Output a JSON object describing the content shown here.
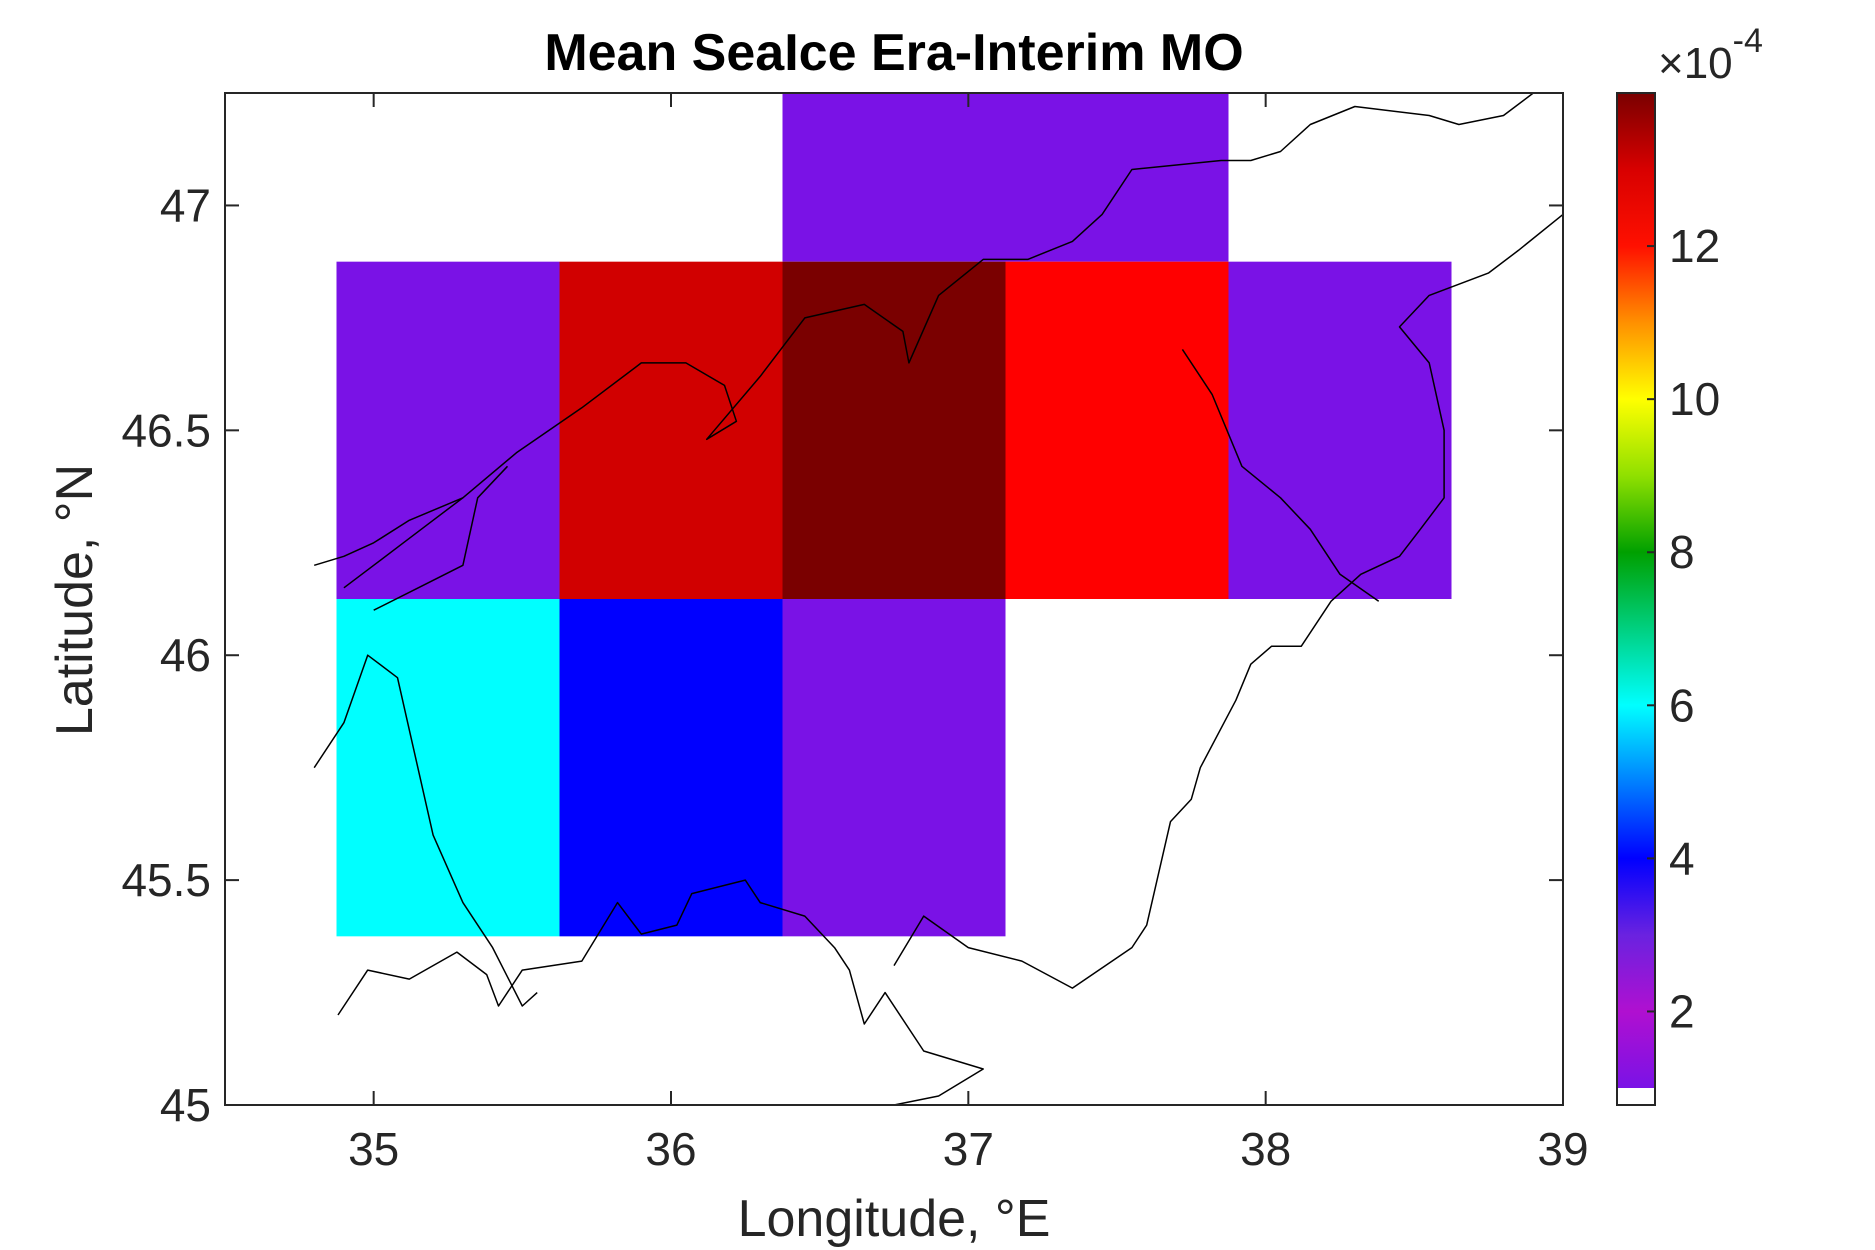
{
  "chart_data": {
    "type": "heatmap",
    "title": "Mean SeaIce Era-Interim MO",
    "xlabel": "Longitude, °E",
    "ylabel": "Latitude, °N",
    "xlim": [
      34.5,
      39
    ],
    "ylim": [
      45,
      47.25
    ],
    "xticks": [
      35,
      36,
      37,
      38,
      39
    ],
    "yticks": [
      45,
      45.5,
      46,
      46.5,
      47
    ],
    "xtick_labels": [
      "35",
      "36",
      "37",
      "38",
      "39"
    ],
    "ytick_labels": [
      "45",
      "45.5",
      "46",
      "46.5",
      "47"
    ],
    "grid": false,
    "cell_width_deg": 0.75,
    "cell_height_deg": 0.75,
    "cells": [
      {
        "lon": 36.75,
        "lat": 47.25,
        "value": 0.00035,
        "color": "#7a12e6"
      },
      {
        "lon": 37.5,
        "lat": 47.25,
        "value": 0.00035,
        "color": "#7a12e6"
      },
      {
        "lon": 35.25,
        "lat": 46.5,
        "value": 0.00035,
        "color": "#7a12e6"
      },
      {
        "lon": 36.0,
        "lat": 46.5,
        "value": 0.00128,
        "color": "#d10000"
      },
      {
        "lon": 36.75,
        "lat": 46.5,
        "value": 0.00138,
        "color": "#7a0000"
      },
      {
        "lon": 37.5,
        "lat": 46.5,
        "value": 0.00122,
        "color": "#ff0000"
      },
      {
        "lon": 38.25,
        "lat": 46.5,
        "value": 0.00035,
        "color": "#7a12e6"
      },
      {
        "lon": 35.25,
        "lat": 45.75,
        "value": 0.0006,
        "color": "#00ffff"
      },
      {
        "lon": 36.0,
        "lat": 45.75,
        "value": 0.0004,
        "color": "#0000ff"
      },
      {
        "lon": 36.75,
        "lat": 45.75,
        "value": 0.00035,
        "color": "#7a12e6"
      }
    ],
    "colorbar": {
      "location": "right",
      "exponent_label": "×10",
      "exponent": "-4",
      "range": [
        1.0,
        14.0
      ],
      "ticks": [
        2,
        4,
        6,
        8,
        10,
        12
      ],
      "tick_labels": [
        "2",
        "4",
        "6",
        "8",
        "10",
        "12"
      ],
      "stops": [
        {
          "value": 1.0,
          "color": "#7a12e6"
        },
        {
          "value": 2.0,
          "color": "#b010d0"
        },
        {
          "value": 3.0,
          "color": "#6a22e0"
        },
        {
          "value": 4.0,
          "color": "#0000ff"
        },
        {
          "value": 5.0,
          "color": "#0080ff"
        },
        {
          "value": 6.0,
          "color": "#00ffff"
        },
        {
          "value": 7.0,
          "color": "#00d080"
        },
        {
          "value": 8.0,
          "color": "#00a000"
        },
        {
          "value": 9.0,
          "color": "#90e000"
        },
        {
          "value": 10.0,
          "color": "#ffff00"
        },
        {
          "value": 11.0,
          "color": "#ff9000"
        },
        {
          "value": 12.0,
          "color": "#ff1000"
        },
        {
          "value": 13.0,
          "color": "#d80000"
        },
        {
          "value": 14.0,
          "color": "#7a0000"
        }
      ]
    },
    "coastlines": [
      [
        [
          34.88,
          45.2
        ],
        [
          34.98,
          45.3
        ],
        [
          35.12,
          45.28
        ],
        [
          35.28,
          45.34
        ],
        [
          35.38,
          45.29
        ],
        [
          35.42,
          45.22
        ],
        [
          35.5,
          45.3
        ],
        [
          35.7,
          45.32
        ],
        [
          35.82,
          45.45
        ],
        [
          35.9,
          45.38
        ],
        [
          36.02,
          45.4
        ],
        [
          36.07,
          45.47
        ],
        [
          36.25,
          45.5
        ],
        [
          36.3,
          45.45
        ],
        [
          36.45,
          45.42
        ],
        [
          36.55,
          45.35
        ],
        [
          36.6,
          45.3
        ],
        [
          36.65,
          45.18
        ],
        [
          36.72,
          45.25
        ],
        [
          36.85,
          45.12
        ],
        [
          37.05,
          45.08
        ],
        [
          36.9,
          45.02
        ],
        [
          36.75,
          45.0
        ]
      ],
      [
        [
          36.75,
          45.31
        ],
        [
          36.85,
          45.42
        ],
        [
          37.0,
          45.35
        ],
        [
          37.18,
          45.32
        ],
        [
          37.35,
          45.26
        ],
        [
          37.55,
          45.35
        ],
        [
          37.6,
          45.4
        ],
        [
          37.68,
          45.63
        ],
        [
          37.75,
          45.68
        ],
        [
          37.78,
          45.75
        ],
        [
          37.9,
          45.9
        ],
        [
          37.95,
          45.98
        ],
        [
          38.02,
          46.02
        ],
        [
          38.12,
          46.02
        ],
        [
          38.22,
          46.12
        ],
        [
          38.32,
          46.18
        ],
        [
          38.45,
          46.22
        ],
        [
          38.52,
          46.28
        ],
        [
          38.6,
          46.35
        ],
        [
          38.6,
          46.5
        ],
        [
          38.55,
          46.65
        ],
        [
          38.45,
          46.73
        ],
        [
          38.55,
          46.8
        ],
        [
          38.75,
          46.85
        ],
        [
          38.85,
          46.9
        ],
        [
          39.0,
          46.98
        ]
      ],
      [
        [
          37.72,
          46.68
        ],
        [
          37.82,
          46.58
        ],
        [
          37.92,
          46.42
        ],
        [
          38.05,
          46.35
        ],
        [
          38.15,
          46.28
        ],
        [
          38.25,
          46.18
        ],
        [
          38.38,
          46.12
        ]
      ],
      [
        [
          34.8,
          46.2
        ],
        [
          34.9,
          46.22
        ],
        [
          35.0,
          46.25
        ],
        [
          35.12,
          46.3
        ],
        [
          35.3,
          46.35
        ],
        [
          35.48,
          46.45
        ],
        [
          35.7,
          46.55
        ],
        [
          35.9,
          46.65
        ],
        [
          36.05,
          46.65
        ],
        [
          36.18,
          46.6
        ],
        [
          36.22,
          46.52
        ],
        [
          36.12,
          46.48
        ],
        [
          36.3,
          46.62
        ],
        [
          36.45,
          46.75
        ],
        [
          36.65,
          46.78
        ],
        [
          36.78,
          46.72
        ],
        [
          36.8,
          46.65
        ],
        [
          36.9,
          46.8
        ],
        [
          37.05,
          46.88
        ],
        [
          37.2,
          46.88
        ],
        [
          37.35,
          46.92
        ],
        [
          37.45,
          46.98
        ],
        [
          37.55,
          47.08
        ],
        [
          37.85,
          47.1
        ],
        [
          37.95,
          47.1
        ],
        [
          38.05,
          47.12
        ],
        [
          38.15,
          47.18
        ],
        [
          38.3,
          47.22
        ],
        [
          38.55,
          47.2
        ],
        [
          38.65,
          47.18
        ],
        [
          38.8,
          47.2
        ],
        [
          38.9,
          47.25
        ],
        [
          39.0,
          47.25
        ]
      ],
      [
        [
          34.9,
          46.15
        ],
        [
          35.0,
          46.2
        ],
        [
          35.1,
          46.25
        ],
        [
          35.2,
          46.3
        ],
        [
          35.3,
          46.35
        ]
      ],
      [
        [
          35.0,
          46.1
        ],
        [
          35.15,
          46.15
        ],
        [
          35.3,
          46.2
        ],
        [
          35.35,
          46.35
        ],
        [
          35.45,
          46.42
        ]
      ],
      [
        [
          34.8,
          45.75
        ],
        [
          34.9,
          45.85
        ],
        [
          34.98,
          46.0
        ],
        [
          35.08,
          45.95
        ],
        [
          35.2,
          45.6
        ],
        [
          35.3,
          45.45
        ],
        [
          35.4,
          45.35
        ],
        [
          35.5,
          45.22
        ],
        [
          35.55,
          45.25
        ]
      ]
    ]
  }
}
